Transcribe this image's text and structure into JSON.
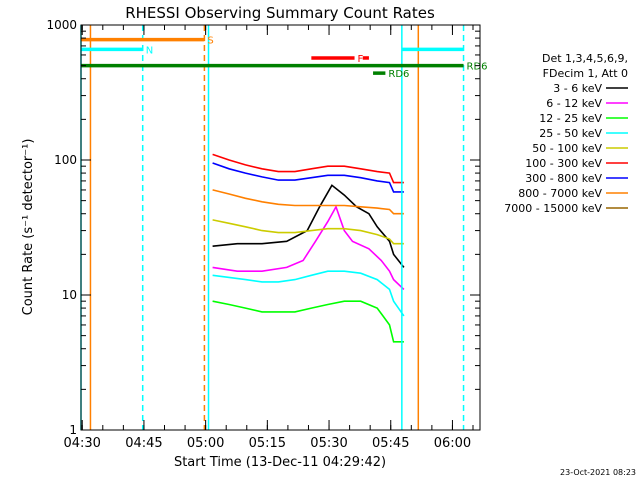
{
  "chart_data": {
    "type": "line",
    "title": "RHESSI Observing Summary Count Rates",
    "xlabel": "Start Time (13-Dec-11 04:29:42)",
    "ylabel": "Count Rate (s⁻¹ detector⁻¹)",
    "ylog": true,
    "ylim": [
      1,
      1000
    ],
    "xlim_minutes": [
      0,
      97
    ],
    "x_tick_labels": [
      "04:30",
      "04:45",
      "05:00",
      "05:15",
      "05:30",
      "05:45",
      "06:00"
    ],
    "x_tick_minutes": [
      0.3,
      15.3,
      30.3,
      45.3,
      60.3,
      75.3,
      90.3
    ],
    "y_tick_labels": [
      "1",
      "10",
      "100",
      "1000"
    ],
    "y_tick_values": [
      1,
      10,
      100,
      1000
    ],
    "legend_header": [
      "Det 1,3,4,5,6,9,",
      "FDecim 1, Att 0"
    ],
    "series": [
      {
        "name": "3 - 6 keV",
        "color": "#000000",
        "x": [
          32,
          38,
          44,
          50,
          55,
          58,
          61,
          64,
          67,
          70,
          72,
          75,
          76,
          78.5
        ],
        "y": [
          23,
          24,
          24,
          25,
          30,
          45,
          65,
          55,
          45,
          40,
          32,
          25,
          20,
          16
        ]
      },
      {
        "name": "6 - 12 keV",
        "color": "#ff00ff",
        "x": [
          32,
          38,
          44,
          50,
          54,
          57,
          60,
          62,
          64,
          66,
          70,
          73,
          75,
          76,
          78.5
        ],
        "y": [
          16,
          15,
          15,
          16,
          18,
          25,
          35,
          45,
          30,
          25,
          22,
          18,
          15,
          13,
          11
        ]
      },
      {
        "name": "12 - 25 keV",
        "color": "#00ff00",
        "x": [
          32,
          36,
          40,
          44,
          48,
          52,
          56,
          60,
          64,
          68,
          72,
          75,
          76,
          78.5
        ],
        "y": [
          9,
          8.5,
          8,
          7.5,
          7.5,
          7.5,
          8,
          8.5,
          9,
          9,
          8,
          6,
          4.5,
          4.5
        ]
      },
      {
        "name": "25 - 50 keV",
        "color": "#00ffff",
        "x": [
          32,
          36,
          40,
          44,
          48,
          52,
          56,
          60,
          64,
          68,
          72,
          75,
          76,
          78.5
        ],
        "y": [
          14,
          13.5,
          13,
          12.5,
          12.5,
          13,
          14,
          15,
          15,
          14.5,
          13,
          11,
          9,
          7
        ]
      },
      {
        "name": "50 - 100 keV",
        "color": "#cccc00",
        "x": [
          32,
          36,
          40,
          44,
          48,
          52,
          56,
          60,
          64,
          68,
          72,
          75,
          76,
          78.5
        ],
        "y": [
          36,
          34,
          32,
          30,
          29,
          29,
          30,
          31,
          31,
          30,
          28,
          26,
          24,
          24
        ]
      },
      {
        "name": "100 - 300 keV",
        "color": "#ff0000",
        "x": [
          32,
          36,
          40,
          44,
          48,
          52,
          56,
          60,
          64,
          68,
          72,
          75,
          76,
          78.5
        ],
        "y": [
          110,
          100,
          92,
          86,
          82,
          82,
          86,
          90,
          90,
          86,
          82,
          80,
          68,
          68
        ]
      },
      {
        "name": "300 - 800 keV",
        "color": "#0000ff",
        "x": [
          32,
          36,
          40,
          44,
          48,
          52,
          56,
          60,
          64,
          68,
          72,
          75,
          76,
          78.5
        ],
        "y": [
          95,
          86,
          80,
          75,
          71,
          71,
          74,
          77,
          77,
          74,
          70,
          68,
          58,
          58
        ]
      },
      {
        "name": "800 - 7000 keV",
        "color": "#ff8000",
        "x": [
          32,
          36,
          40,
          44,
          48,
          52,
          56,
          60,
          64,
          68,
          72,
          75,
          76,
          78.5
        ],
        "y": [
          60,
          56,
          52,
          49,
          47,
          46,
          46,
          46,
          46,
          45,
          44,
          43,
          40,
          40
        ]
      },
      {
        "name": "7000 - 15000 keV",
        "color": "#996600",
        "x": [],
        "y": []
      }
    ],
    "annotations": {
      "segments": [
        {
          "label": "S",
          "color": "#ff8000",
          "x0": 0,
          "x1": 30,
          "y": 780
        },
        {
          "label": "N",
          "color": "#00ffff",
          "x0": 0,
          "x1": 15,
          "y": 660
        },
        {
          "label": "",
          "color": "#00ffff",
          "x0": 78,
          "x1": 93,
          "y": 660
        },
        {
          "label": "F",
          "color": "#ff0000",
          "x0": 56,
          "x1": 66.5,
          "y": 570
        },
        {
          "label": "",
          "color": "#ff0000",
          "x0": 68.5,
          "x1": 70,
          "y": 570
        },
        {
          "label": "RD6",
          "color": "#008000",
          "x0": 0,
          "x1": 93,
          "y": 500
        },
        {
          "label": "RD6",
          "color": "#008000",
          "x0": 71,
          "x1": 74,
          "y": 440
        }
      ]
    },
    "vertical_lines": [
      {
        "x": 0,
        "color": "#00ffff",
        "style": "solid"
      },
      {
        "x": 2.3,
        "color": "#ff8000",
        "style": "solid"
      },
      {
        "x": 15,
        "color": "#00ffff",
        "style": "dashed"
      },
      {
        "x": 30,
        "color": "#ff8000",
        "style": "dashed"
      },
      {
        "x": 31,
        "color": "#00ffff",
        "style": "solid"
      },
      {
        "x": 78,
        "color": "#00ffff",
        "style": "solid"
      },
      {
        "x": 82,
        "color": "#ff8000",
        "style": "solid"
      },
      {
        "x": 93,
        "color": "#00ffff",
        "style": "dashed"
      }
    ],
    "timestamp": "23-Oct-2021 08:23"
  }
}
